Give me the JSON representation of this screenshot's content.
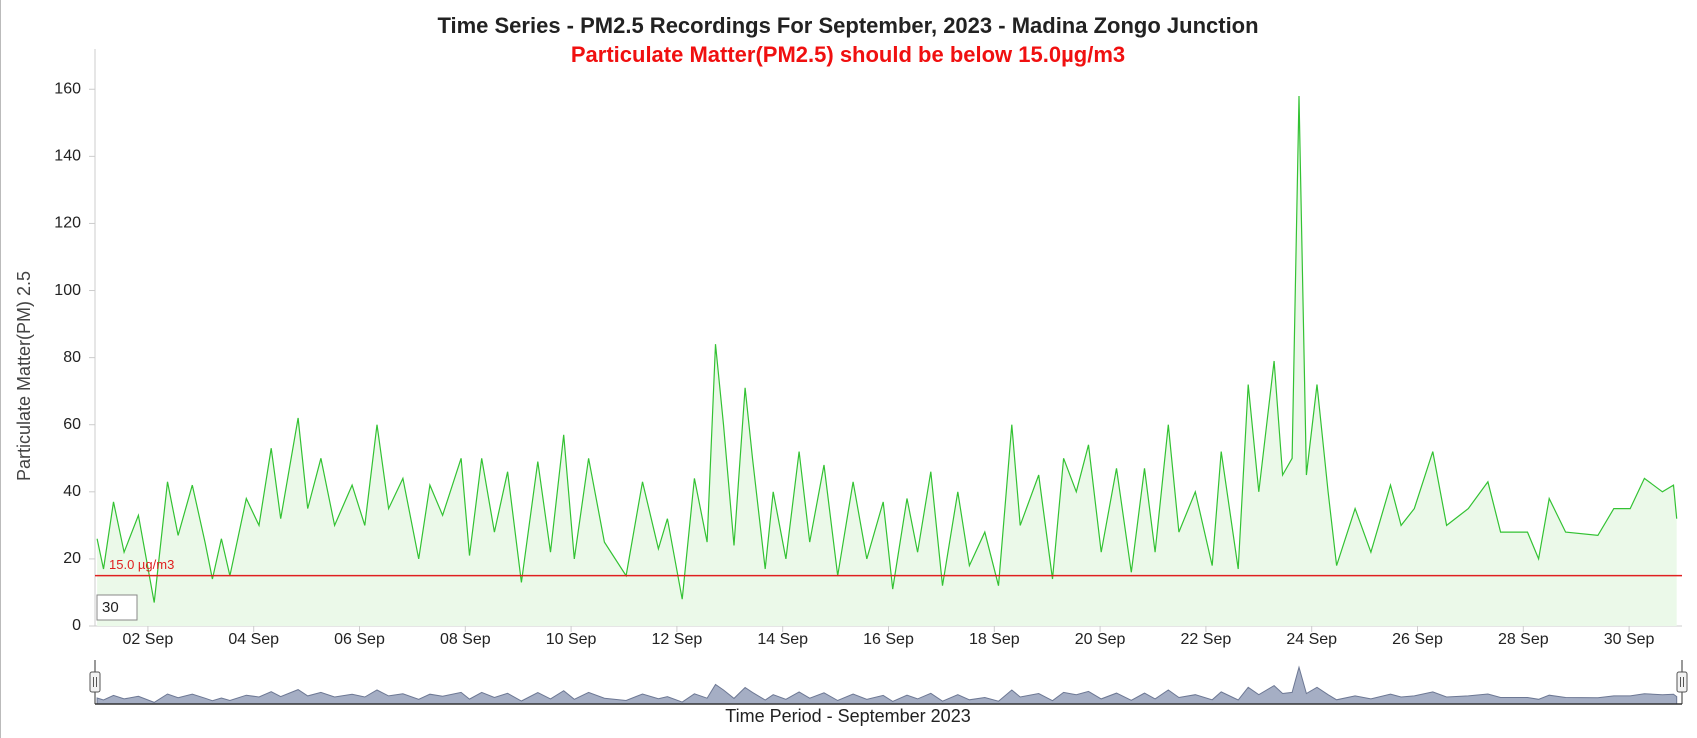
{
  "chart_data": {
    "type": "area",
    "title": "Time Series - PM2.5 Recordings For September, 2023 - Madina Zongo Junction",
    "subtitle": "Particulate Matter(PM2.5) should be below 15.0µg/m3",
    "y_label": "Particulate Matter(PM) 2.5",
    "x_label": "Time Period - September 2023",
    "threshold": 15,
    "threshold_label": "15.0 µg/m3",
    "input_value": "30",
    "color": "#33c233",
    "fill_color": "#ebf9e9",
    "threshold_color": "#e02020",
    "xlim": [
      1,
      31
    ],
    "ylim": [
      0,
      172
    ],
    "yticks": [
      0,
      20,
      40,
      60,
      80,
      100,
      120,
      140,
      160
    ],
    "xticks": [
      {
        "value": 2,
        "label": "02 Sep"
      },
      {
        "value": 4,
        "label": "04 Sep"
      },
      {
        "value": 6,
        "label": "06 Sep"
      },
      {
        "value": 8,
        "label": "08 Sep"
      },
      {
        "value": 10,
        "label": "10 Sep"
      },
      {
        "value": 12,
        "label": "12 Sep"
      },
      {
        "value": 14,
        "label": "14 Sep"
      },
      {
        "value": 16,
        "label": "16 Sep"
      },
      {
        "value": 18,
        "label": "18 Sep"
      },
      {
        "value": 20,
        "label": "20 Sep"
      },
      {
        "value": 22,
        "label": "22 Sep"
      },
      {
        "value": 24,
        "label": "24 Sep"
      },
      {
        "value": 26,
        "label": "26 Sep"
      },
      {
        "value": 28,
        "label": "28 Sep"
      },
      {
        "value": 30,
        "label": "30 Sep"
      }
    ],
    "x": [
      1.04,
      1.16,
      1.35,
      1.55,
      1.82,
      2.12,
      2.37,
      2.57,
      2.84,
      3.08,
      3.22,
      3.39,
      3.55,
      3.86,
      4.1,
      4.33,
      4.51,
      4.84,
      5.02,
      5.27,
      5.53,
      5.86,
      6.1,
      6.33,
      6.55,
      6.82,
      7.12,
      7.33,
      7.57,
      7.92,
      8.08,
      8.31,
      8.55,
      8.8,
      9.06,
      9.37,
      9.61,
      9.86,
      10.06,
      10.33,
      10.63,
      11.04,
      11.35,
      11.65,
      11.82,
      12.1,
      12.33,
      12.57,
      12.73,
      12.88,
      13.08,
      13.29,
      13.43,
      13.67,
      13.82,
      14.06,
      14.31,
      14.51,
      14.78,
      15.04,
      15.33,
      15.59,
      15.9,
      16.08,
      16.35,
      16.55,
      16.8,
      17.02,
      17.31,
      17.53,
      17.82,
      18.08,
      18.33,
      18.49,
      18.84,
      19.1,
      19.31,
      19.55,
      19.78,
      20.02,
      20.31,
      20.59,
      20.84,
      21.04,
      21.29,
      21.49,
      21.8,
      22.12,
      22.29,
      22.61,
      22.8,
      23.0,
      23.29,
      23.45,
      23.63,
      23.76,
      23.9,
      24.1,
      24.31,
      24.47,
      24.82,
      25.12,
      25.49,
      25.69,
      25.94,
      26.29,
      26.55,
      26.96,
      27.33,
      27.57,
      28.08,
      28.29,
      28.49,
      28.8,
      29.41,
      29.71,
      30.02,
      30.29,
      30.63,
      30.84,
      30.9
    ],
    "values": [
      26,
      17,
      37,
      22,
      33,
      7,
      43,
      27,
      42,
      25,
      14,
      26,
      15,
      38,
      30,
      53,
      32,
      62,
      35,
      50,
      30,
      42,
      30,
      60,
      35,
      44,
      20,
      42,
      33,
      50,
      21,
      50,
      28,
      46,
      13,
      49,
      22,
      57,
      20,
      50,
      25,
      15,
      43,
      23,
      32,
      8,
      44,
      25,
      84,
      60,
      24,
      71,
      50,
      17,
      40,
      20,
      52,
      25,
      48,
      15,
      43,
      20,
      37,
      11,
      38,
      22,
      46,
      12,
      40,
      18,
      28,
      12,
      60,
      30,
      45,
      14,
      50,
      40,
      54,
      22,
      47,
      16,
      47,
      22,
      60,
      28,
      40,
      18,
      52,
      17,
      72,
      40,
      79,
      45,
      50,
      158,
      45,
      72,
      40,
      18,
      35,
      22,
      42,
      30,
      35,
      52,
      30,
      35,
      43,
      28,
      28,
      20,
      38,
      28,
      27,
      35,
      35,
      44,
      40,
      42,
      32
    ]
  }
}
